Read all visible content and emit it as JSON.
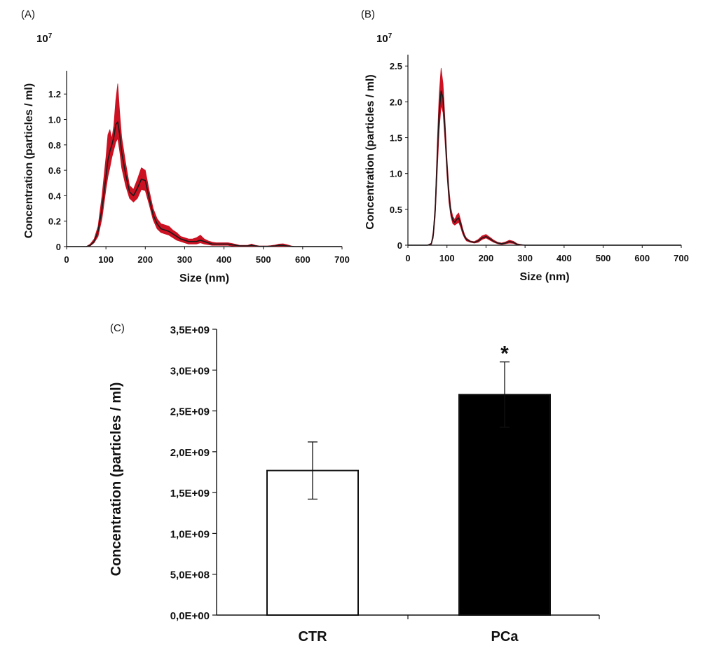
{
  "colors": {
    "band": "#cc1122",
    "line": "#1a1a1a",
    "axis": "#111111",
    "bar_ctr": "#ffffff",
    "bar_pca": "#000000"
  },
  "chart_data": [
    {
      "type": "area",
      "panel_label": "(A)",
      "exponent_base": "10",
      "exponent_power": "7",
      "xlabel": "Size (nm)",
      "ylabel": "Concentration (particles / ml)",
      "xlim": [
        0,
        700
      ],
      "ylim": [
        0,
        1.35
      ],
      "xticks": [
        "0",
        "100",
        "200",
        "300",
        "400",
        "500",
        "600",
        "700"
      ],
      "yticks": [
        "0",
        "0.2",
        "0.4",
        "0.6",
        "0.8",
        "1.0",
        "1.2"
      ],
      "series": [
        {
          "x": [
            0,
            50,
            60,
            70,
            80,
            90,
            100,
            105,
            110,
            115,
            120,
            125,
            130,
            135,
            140,
            150,
            160,
            170,
            180,
            190,
            200,
            210,
            220,
            230,
            240,
            250,
            260,
            270,
            280,
            290,
            300,
            310,
            320,
            330,
            340,
            350,
            360,
            370,
            380,
            390,
            400,
            410,
            420,
            430,
            440,
            450,
            460,
            470,
            480,
            490,
            500,
            510,
            520,
            530,
            540,
            550,
            560,
            570,
            580,
            600,
            650,
            700
          ],
          "mean": [
            0,
            0,
            0.01,
            0.04,
            0.12,
            0.3,
            0.55,
            0.68,
            0.75,
            0.8,
            0.86,
            0.96,
            0.98,
            0.88,
            0.74,
            0.57,
            0.43,
            0.4,
            0.46,
            0.53,
            0.52,
            0.38,
            0.25,
            0.18,
            0.14,
            0.13,
            0.12,
            0.1,
            0.08,
            0.06,
            0.05,
            0.04,
            0.04,
            0.04,
            0.05,
            0.04,
            0.03,
            0.02,
            0.02,
            0.02,
            0.02,
            0.02,
            0.015,
            0.01,
            0.005,
            0.005,
            0.005,
            0.01,
            0.005,
            0.002,
            0.002,
            0.002,
            0.003,
            0.005,
            0.01,
            0.01,
            0.005,
            0.002,
            0,
            0,
            0,
            0
          ],
          "lower": [
            0,
            0,
            0.005,
            0.03,
            0.08,
            0.22,
            0.45,
            0.55,
            0.62,
            0.7,
            0.76,
            0.82,
            0.85,
            0.75,
            0.62,
            0.48,
            0.38,
            0.35,
            0.38,
            0.45,
            0.44,
            0.33,
            0.21,
            0.14,
            0.11,
            0.1,
            0.09,
            0.07,
            0.05,
            0.04,
            0.03,
            0.02,
            0.02,
            0.02,
            0.03,
            0.02,
            0.015,
            0.01,
            0.01,
            0.01,
            0.01,
            0.01,
            0.005,
            0.003,
            0,
            0,
            0,
            0.003,
            0,
            0,
            0,
            0,
            0,
            0,
            0.003,
            0.003,
            0,
            0,
            0,
            0,
            0,
            0
          ],
          "upper": [
            0,
            0,
            0.02,
            0.06,
            0.16,
            0.4,
            0.7,
            0.88,
            0.92,
            0.85,
            0.95,
            1.15,
            1.28,
            1.05,
            0.86,
            0.66,
            0.48,
            0.45,
            0.53,
            0.62,
            0.6,
            0.44,
            0.3,
            0.22,
            0.18,
            0.17,
            0.16,
            0.13,
            0.11,
            0.08,
            0.07,
            0.06,
            0.06,
            0.07,
            0.09,
            0.06,
            0.045,
            0.035,
            0.03,
            0.03,
            0.03,
            0.03,
            0.025,
            0.018,
            0.01,
            0.01,
            0.01,
            0.02,
            0.01,
            0.005,
            0.005,
            0.005,
            0.008,
            0.012,
            0.02,
            0.022,
            0.015,
            0.006,
            0,
            0,
            0,
            0
          ]
        }
      ]
    },
    {
      "type": "area",
      "panel_label": "(B)",
      "exponent_base": "10",
      "exponent_power": "7",
      "xlabel": "Size (nm)",
      "ylabel": "Concentration (particles / ml)",
      "xlim": [
        0,
        700
      ],
      "ylim": [
        0,
        2.6
      ],
      "xticks": [
        "0",
        "100",
        "200",
        "300",
        "400",
        "500",
        "600",
        "700"
      ],
      "yticks": [
        "0",
        "0.5",
        "1.0",
        "1.5",
        "2.0",
        "2.5"
      ],
      "series": [
        {
          "x": [
            0,
            50,
            60,
            65,
            70,
            75,
            80,
            85,
            90,
            95,
            100,
            105,
            110,
            115,
            120,
            125,
            130,
            135,
            140,
            145,
            150,
            160,
            170,
            180,
            190,
            200,
            210,
            220,
            230,
            240,
            250,
            260,
            270,
            280,
            290,
            300,
            350,
            400,
            500,
            600,
            700
          ],
          "mean": [
            0,
            0,
            0.02,
            0.15,
            0.5,
            1.2,
            1.85,
            2.15,
            2.05,
            1.6,
            1.1,
            0.7,
            0.45,
            0.35,
            0.32,
            0.36,
            0.38,
            0.3,
            0.2,
            0.12,
            0.08,
            0.05,
            0.04,
            0.06,
            0.1,
            0.12,
            0.09,
            0.05,
            0.03,
            0.02,
            0.03,
            0.05,
            0.04,
            0.01,
            0.005,
            0,
            0,
            0,
            0,
            0,
            0
          ],
          "lower": [
            0,
            0,
            0.01,
            0.1,
            0.4,
            1.0,
            1.6,
            1.95,
            1.85,
            1.45,
            0.98,
            0.6,
            0.4,
            0.3,
            0.28,
            0.3,
            0.32,
            0.25,
            0.16,
            0.1,
            0.06,
            0.04,
            0.03,
            0.04,
            0.08,
            0.1,
            0.07,
            0.04,
            0.02,
            0.01,
            0.02,
            0.03,
            0.025,
            0.005,
            0,
            0,
            0,
            0,
            0,
            0,
            0
          ],
          "upper": [
            0,
            0,
            0.03,
            0.2,
            0.6,
            1.4,
            2.1,
            2.47,
            2.25,
            1.75,
            1.22,
            0.8,
            0.52,
            0.4,
            0.36,
            0.42,
            0.45,
            0.35,
            0.24,
            0.15,
            0.1,
            0.06,
            0.05,
            0.08,
            0.13,
            0.15,
            0.11,
            0.07,
            0.04,
            0.03,
            0.045,
            0.07,
            0.055,
            0.02,
            0.01,
            0,
            0,
            0,
            0,
            0,
            0
          ]
        }
      ]
    },
    {
      "type": "bar",
      "panel_label": "(C)",
      "xlabel": "",
      "ylabel": "Concentration (particles / ml)",
      "ylim": [
        0,
        3500000000
      ],
      "yticks": [
        "0,0E+00",
        "5,0E+08",
        "1,0E+09",
        "1,5E+09",
        "2,0E+09",
        "2,5E+09",
        "3,0E+09",
        "3,5E+09"
      ],
      "categories": [
        "CTR",
        "PCa"
      ],
      "values": [
        1770000000,
        2700000000
      ],
      "error": [
        350000000,
        400000000
      ],
      "annotations": [
        "",
        "*"
      ]
    }
  ]
}
